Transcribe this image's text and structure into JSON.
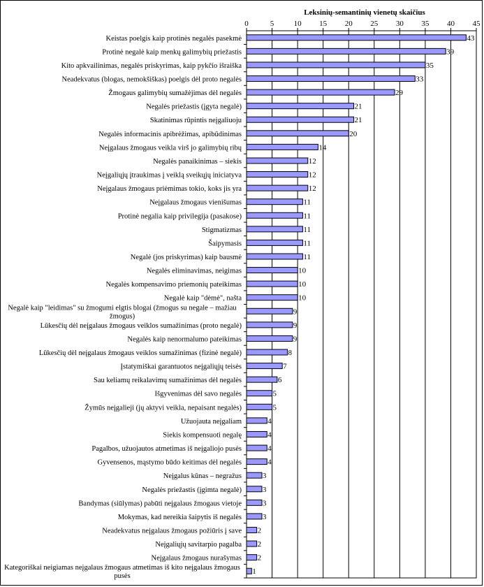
{
  "chart_data": {
    "type": "bar",
    "orientation": "horizontal",
    "xlabel": "Leksinių-semantinių vienetų skaičius",
    "ylabel": "",
    "xlim": [
      0,
      45
    ],
    "xticks": [
      0,
      5,
      10,
      15,
      20,
      25,
      30,
      35,
      40,
      45
    ],
    "grid": true,
    "bar_color": "#9999ff",
    "categories": [
      "Keistas poelgis kaip protinės negalės pasekmė",
      "Protinė negalė kaip menkų galimybių priežastis",
      "Kito apkvailinimas, negalės priskyrimas, kaip pykčio išraiška",
      "Neadekvatus (blogas, nemokšiškas) poelgis dėl proto negalės",
      "Žmogaus galimybių sumažėjimas dėl negalės",
      "Negalės priežastis (įgyta negalė)",
      "Skatinimas rūpintis neįgaliuoju",
      "Negalės informacinis apibrėžimas, apibūdinimas",
      "Neįgalaus žmogaus veikla virš jo galimybių ribų",
      "Negalės panaikinimas – siekis",
      "Neįgaliųjų įtraukimas į veiklą sveikųjų iniciatyva",
      "Neįgalaus žmogaus priėmimas tokio, koks jis yra",
      "Neįgalaus žmogaus vienišumas",
      "Protinė negalia kaip privilegija (pasakose)",
      "Stigmatizmas",
      "Šaipymasis",
      "Negalė (jos priskyrimas) kaip bausmė",
      "Negalės eliminavimas, neigimas",
      "Negalės kompensavimo priemonių pateikimas",
      "Negalė kaip \"dėmė\", našta",
      "Negalė kaip \"leidimas\" su žmogumi elgtis blogai (žmogus su negale – mažiau žmogus)",
      "Lūkesčių dėl neįgalaus žmogaus veiklos sumažinimas (proto negalė)",
      "Negalės kaip nenormalumo pateikimas",
      "Lūkesčių dėl neįgalaus žmogaus veiklos sumažinimas (fizinė negalė)",
      "Įstatymiškai garantuotos neįgaliųjų teisės",
      "Sau keliamų reikalavimų sumažinimas dėl negalės",
      "Išgyvenimas dėl savo negalės",
      "Žymūs neįgalieji (jų aktyvi veikla, nepaisant negalės)",
      "Užuojauta neįgaliam",
      "Siekis kompensuoti negalę",
      "Pagalbos, užuojautos atmetimas iš neįgaliojo pusės",
      "Gyvensenos, mąstymo būdo keitimas dėl negalės",
      "Neįgalus kūnas – negražus",
      "Negalės priežastis (įgimta negalė)",
      "Bandymas (siūlymas) pabūti neįgalaus žmogaus vietoje",
      "Mokymas, kad nereikia šaipytis iš negalės",
      "Neadekvatus neįgalaus žmogaus požiūris į save",
      "Neįgaliųjų savitarpio pagalba",
      "Neįgalaus žmogaus nurašymas",
      "Kategoriškai neigiamas neįgalaus žmogaus atmetimas iš kito neįgalaus žmogaus pusės"
    ],
    "values": [
      43,
      39,
      35,
      33,
      29,
      21,
      21,
      20,
      14,
      12,
      12,
      12,
      11,
      11,
      11,
      11,
      11,
      10,
      10,
      10,
      9,
      9,
      9,
      8,
      7,
      6,
      5,
      5,
      4,
      4,
      4,
      4,
      3,
      3,
      3,
      3,
      2,
      2,
      2,
      1
    ]
  }
}
